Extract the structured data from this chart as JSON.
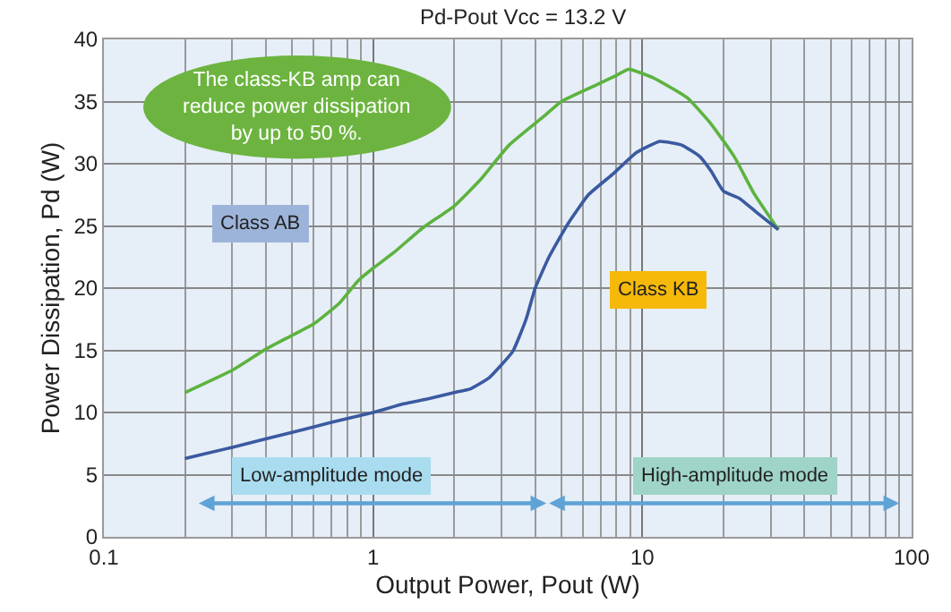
{
  "chart_data": {
    "type": "line",
    "title": "Pd-Pout Vcc = 13.2 V",
    "xlabel": "Output Power, Pout (W)",
    "ylabel": "Power Dissipation, Pd (W)",
    "log": "x",
    "grid": true,
    "marker": "none",
    "line_style": "solid",
    "xlim": [
      0.1,
      100
    ],
    "xticks": [
      0.1,
      1,
      10,
      100
    ],
    "ylim": [
      0,
      40
    ],
    "yticks": [
      0,
      5,
      10,
      15,
      20,
      25,
      30,
      35,
      40
    ],
    "series": [
      {
        "color": "#5cb33f",
        "x": [
          0.2,
          0.3,
          0.4,
          0.5,
          0.6,
          0.75,
          0.88,
          1.0,
          1.2,
          1.52,
          2.0,
          2.5,
          3.2,
          4.3,
          5.0,
          6.7,
          8.0,
          8.9,
          11,
          14.7,
          18,
          21.9,
          26,
          32
        ],
        "values": [
          11.6,
          13.4,
          15.1,
          16.2,
          17.1,
          18.8,
          20.6,
          21.6,
          22.9,
          24.8,
          26.6,
          28.7,
          31.5,
          33.8,
          35.0,
          36.3,
          37.1,
          37.6,
          36.9,
          35.3,
          33.2,
          30.6,
          27.6,
          24.7
        ]
      },
      {
        "color": "#3a5aa0",
        "x": [
          0.2,
          0.3,
          0.5,
          0.7,
          1.0,
          1.3,
          1.6,
          2.0,
          2.3,
          2.7,
          3.3,
          3.7,
          4.0,
          4.5,
          5.3,
          6.3,
          7.8,
          9.5,
          11.6,
          14,
          16.3,
          18,
          20,
          23,
          26.5,
          32
        ],
        "values": [
          6.3,
          7.2,
          8.4,
          9.2,
          10.0,
          10.7,
          11.1,
          11.6,
          11.9,
          12.8,
          14.9,
          17.5,
          20.0,
          22.5,
          25.2,
          27.5,
          29.2,
          30.9,
          31.8,
          31.5,
          30.6,
          29.4,
          27.8,
          27.2,
          26.1,
          24.7
        ]
      }
    ],
    "annotations": [
      "The class-KB amp can\nreduce power dissipation\nby up to 50 %.",
      "Class AB",
      "Class KB",
      "Low-amplitude mode",
      "High-amplitude mode"
    ]
  }
}
